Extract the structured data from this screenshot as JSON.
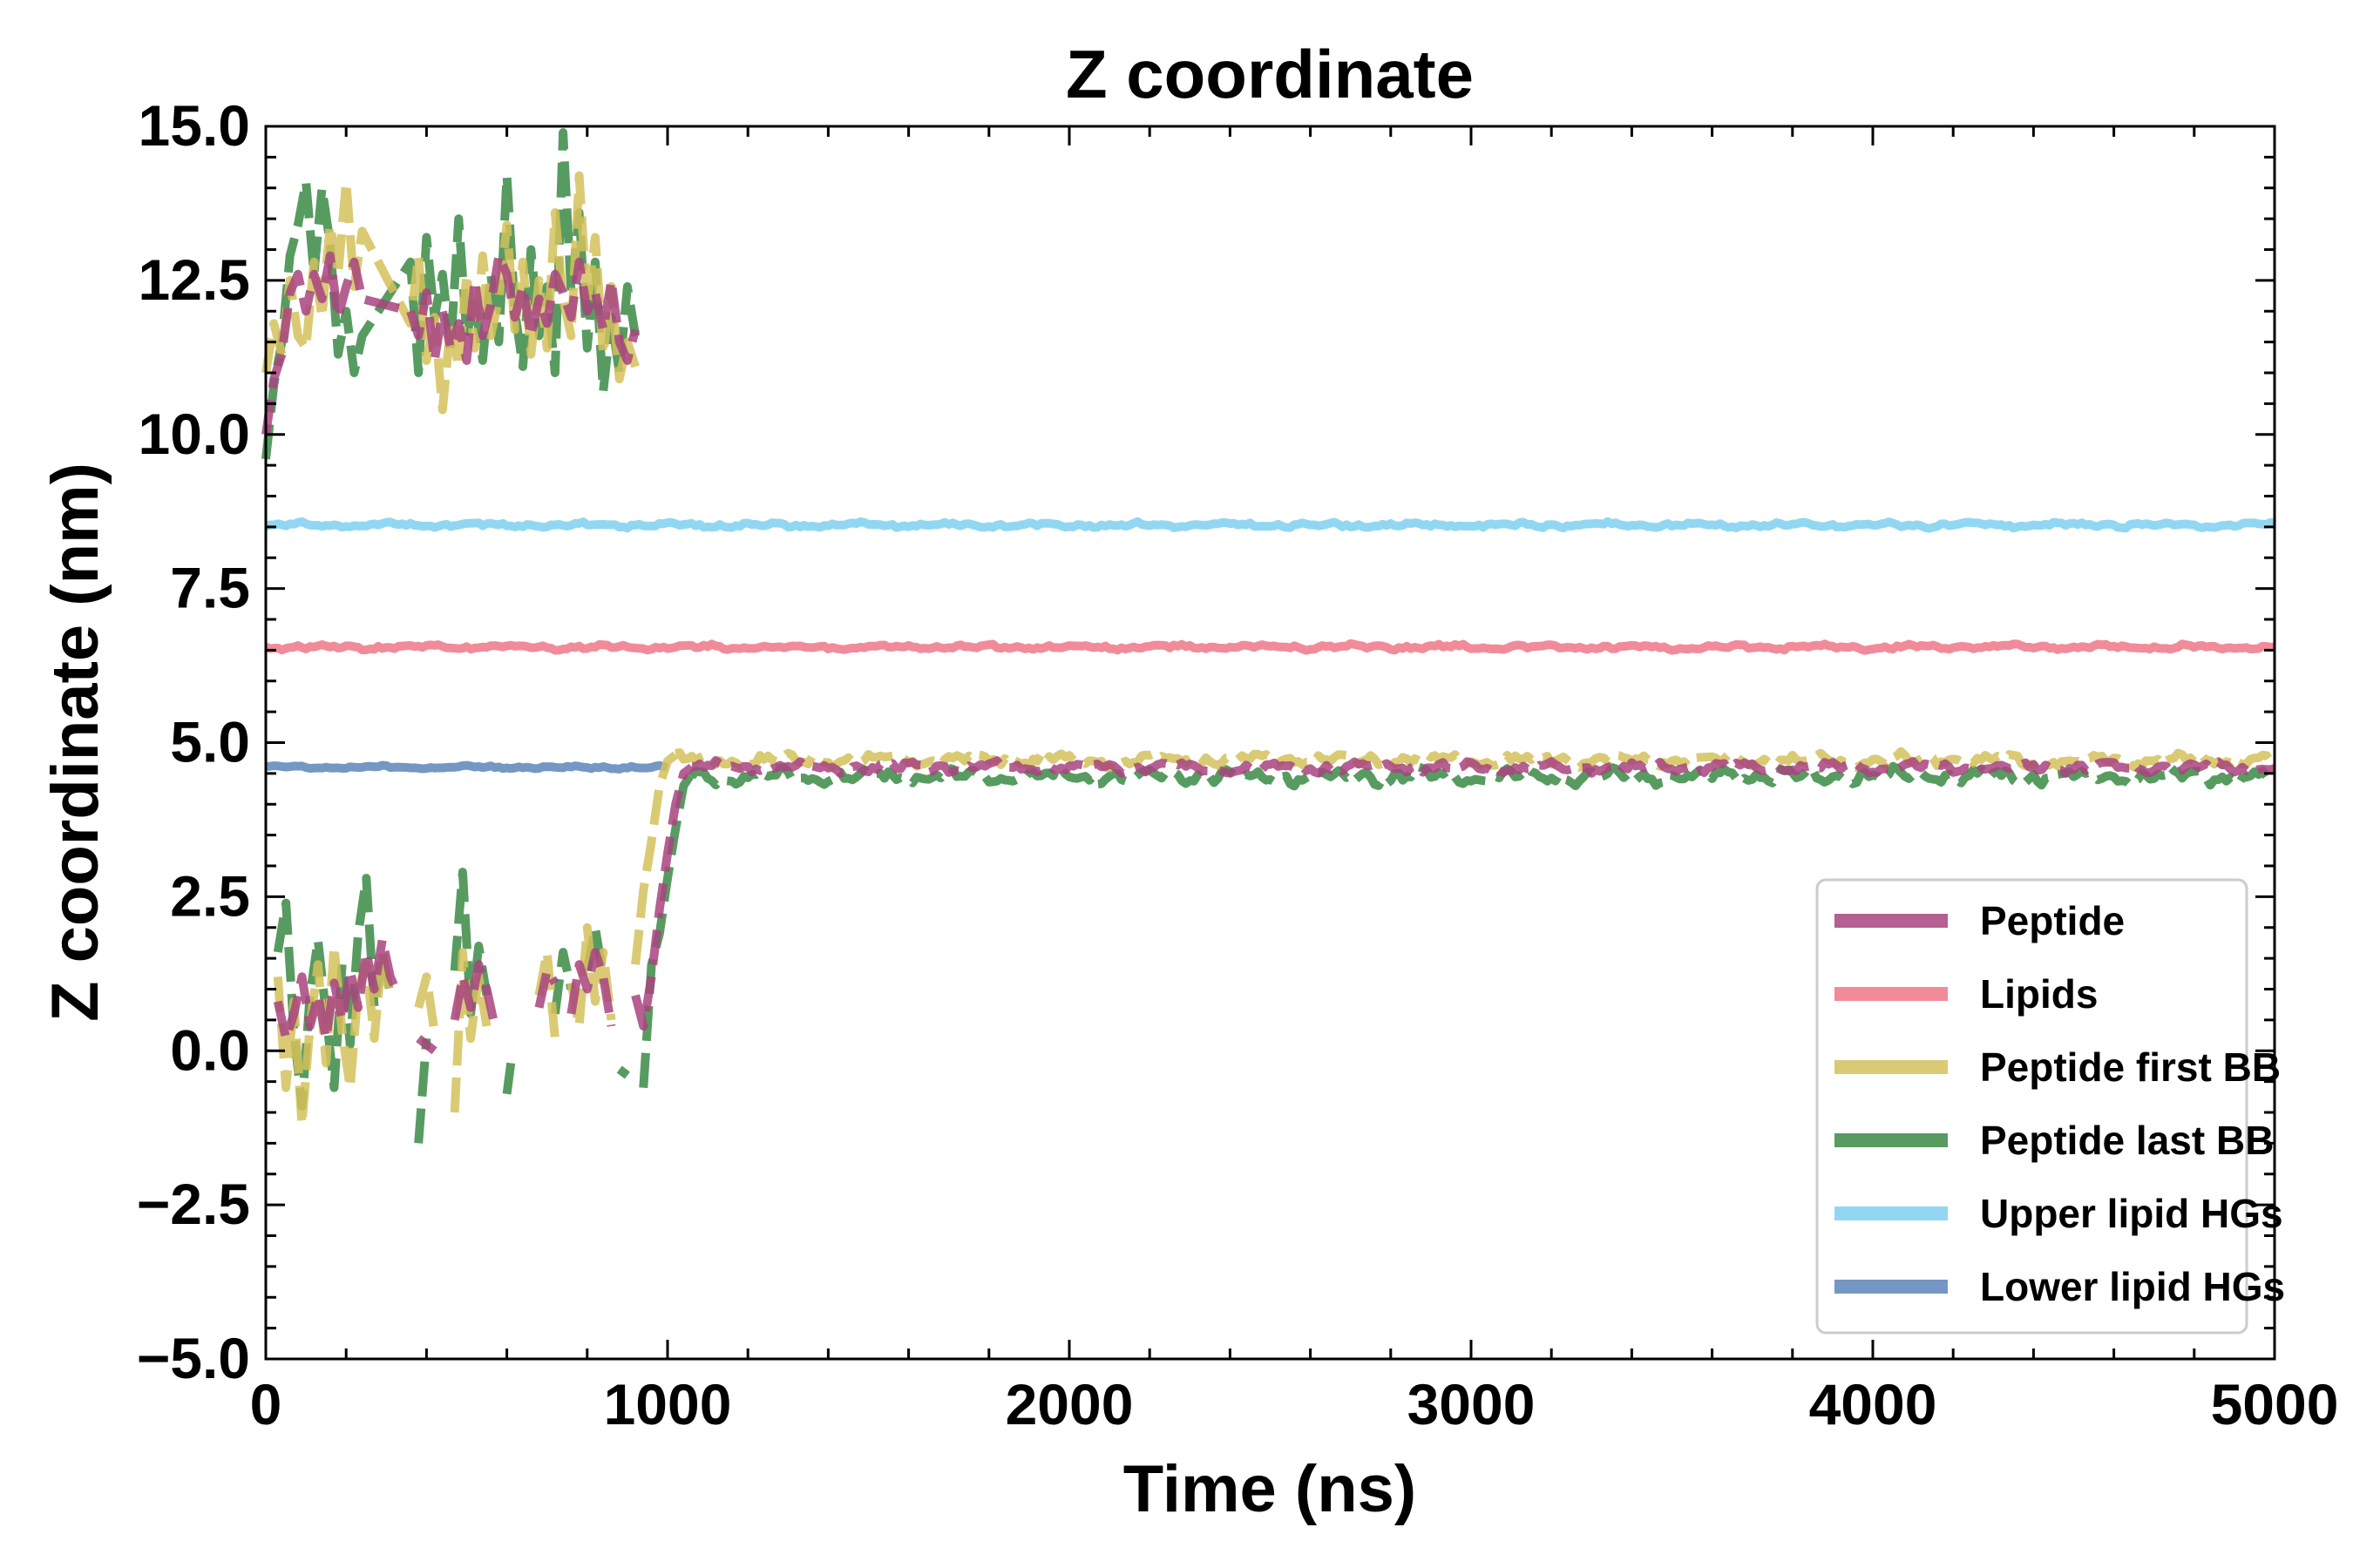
{
  "chart_data": {
    "type": "line",
    "title": "Z coordinate",
    "xlabel": "Time (ns)",
    "ylabel": "Z coordinate (nm)",
    "xlim": [
      0,
      5000
    ],
    "ylim": [
      -5.0,
      15.0
    ],
    "xticks": [
      0,
      1000,
      2000,
      3000,
      4000,
      5000
    ],
    "xtick_labels": [
      "0",
      "1000",
      "2000",
      "3000",
      "4000",
      "5000"
    ],
    "yticks": [
      -5.0,
      -2.5,
      0.0,
      2.5,
      5.0,
      7.5,
      10.0,
      12.5,
      15.0
    ],
    "ytick_labels": [
      "−5.0",
      "−2.5",
      "0.0",
      "2.5",
      "5.0",
      "7.5",
      "10.0",
      "12.5",
      "15.0"
    ],
    "grid": false,
    "legend_position": "lower-right",
    "series": [
      {
        "name": "Peptide",
        "color": "#a8437f",
        "style": "dashed",
        "points": [
          [
            0,
            10.0
          ],
          [
            20,
            10.9
          ],
          [
            40,
            11.3
          ],
          [
            60,
            12.3
          ],
          [
            80,
            12.6
          ],
          [
            100,
            12.0
          ],
          [
            120,
            12.6
          ],
          [
            140,
            12.2
          ],
          [
            160,
            12.9
          ],
          [
            180,
            11.9
          ],
          [
            200,
            12.4
          ],
          [
            220,
            12.8
          ],
          [
            240,
            12.2
          ],
          [
            360,
            12.0
          ],
          [
            380,
            11.6
          ],
          [
            400,
            12.3
          ],
          [
            420,
            11.2
          ],
          [
            440,
            12.0
          ],
          [
            460,
            11.4
          ],
          [
            480,
            11.8
          ],
          [
            500,
            11.2
          ],
          [
            520,
            12.5
          ],
          [
            540,
            11.6
          ],
          [
            560,
            12.1
          ],
          [
            580,
            12.9
          ],
          [
            600,
            12.6
          ],
          [
            620,
            11.9
          ],
          [
            640,
            12.4
          ],
          [
            660,
            11.6
          ],
          [
            680,
            12.2
          ],
          [
            700,
            11.8
          ],
          [
            720,
            12.6
          ],
          [
            740,
            12.3
          ],
          [
            760,
            11.9
          ],
          [
            780,
            12.8
          ],
          [
            800,
            12.0
          ],
          [
            820,
            12.3
          ],
          [
            840,
            11.7
          ],
          [
            860,
            12.5
          ],
          [
            880,
            11.5
          ],
          [
            900,
            11.2
          ],
          [
            920,
            11.7
          ],
          null,
          [
            30,
            0.8
          ],
          [
            50,
            0.2
          ],
          [
            70,
            0.6
          ],
          [
            90,
            1.2
          ],
          [
            110,
            0.4
          ],
          [
            130,
            0.9
          ],
          [
            150,
            0.2
          ],
          [
            170,
            1.1
          ],
          [
            190,
            0.5
          ],
          [
            210,
            1.3
          ],
          [
            230,
            0.7
          ],
          [
            250,
            1.6
          ],
          [
            270,
            1.0
          ],
          [
            290,
            1.8
          ],
          [
            310,
            1.2
          ],
          [
            330,
            0.9
          ],
          null,
          [
            380,
            0.2
          ],
          [
            420,
            0.0
          ],
          null,
          [
            470,
            0.5
          ],
          [
            490,
            1.2
          ],
          [
            510,
            0.7
          ],
          [
            530,
            1.4
          ],
          [
            550,
            1.0
          ],
          [
            570,
            0.4
          ],
          null,
          [
            680,
            0.7
          ],
          [
            700,
            1.3
          ],
          [
            720,
            1.1
          ],
          null,
          [
            760,
            0.6
          ],
          [
            780,
            1.4
          ],
          [
            800,
            1.0
          ],
          [
            820,
            1.6
          ],
          [
            840,
            1.2
          ],
          [
            860,
            0.4
          ],
          null,
          [
            920,
            0.9
          ],
          [
            940,
            0.4
          ],
          [
            960,
            1.2
          ],
          [
            980,
            2.3
          ],
          [
            1000,
            3.2
          ],
          [
            1020,
            4.0
          ],
          [
            1040,
            4.5
          ],
          [
            1060,
            4.6
          ]
        ],
        "tail": {
          "from": 1060,
          "to": 5000,
          "base": 4.6,
          "amp": 0.1
        }
      },
      {
        "name": "Lipids",
        "color": "#ee7788",
        "style": "solid",
        "tail": {
          "from": 0,
          "to": 5000,
          "base": 6.55,
          "amp": 0.05
        }
      },
      {
        "name": "Peptide first BB",
        "color": "#d4c15a",
        "style": "dashed",
        "points": [
          [
            0,
            11.0
          ],
          [
            20,
            11.8
          ],
          [
            40,
            11.3
          ],
          [
            60,
            12.5
          ],
          [
            80,
            11.6
          ],
          [
            100,
            11.4
          ],
          [
            120,
            12.8
          ],
          [
            140,
            11.9
          ],
          [
            160,
            13.4
          ],
          [
            180,
            12.6
          ],
          [
            200,
            14.1
          ],
          [
            220,
            12.4
          ],
          [
            240,
            13.3
          ],
          [
            360,
            11.8
          ],
          [
            380,
            12.9
          ],
          [
            400,
            11.2
          ],
          [
            420,
            11.9
          ],
          [
            440,
            10.4
          ],
          [
            460,
            11.8
          ],
          [
            480,
            11.1
          ],
          [
            500,
            12.6
          ],
          [
            520,
            11.4
          ],
          [
            540,
            12.9
          ],
          [
            560,
            11.6
          ],
          [
            580,
            12.2
          ],
          [
            600,
            13.4
          ],
          [
            620,
            11.7
          ],
          [
            640,
            12.8
          ],
          [
            660,
            11.3
          ],
          [
            680,
            12.5
          ],
          [
            700,
            11.4
          ],
          [
            720,
            13.6
          ],
          [
            740,
            12.2
          ],
          [
            760,
            11.6
          ],
          [
            780,
            14.2
          ],
          [
            800,
            12.1
          ],
          [
            820,
            13.2
          ],
          [
            840,
            11.3
          ],
          [
            860,
            12.4
          ],
          [
            880,
            10.9
          ],
          [
            900,
            11.5
          ],
          [
            920,
            11.1
          ],
          null,
          [
            30,
            1.2
          ],
          [
            50,
            -0.6
          ],
          [
            70,
            0.8
          ],
          [
            90,
            -1.2
          ],
          [
            110,
            0.4
          ],
          [
            130,
            1.4
          ],
          [
            150,
            -0.2
          ],
          [
            170,
            1.7
          ],
          [
            190,
            0.3
          ],
          [
            210,
            -0.6
          ],
          [
            230,
            1.0
          ],
          [
            250,
            1.4
          ],
          [
            270,
            0.2
          ],
          [
            290,
            1.6
          ],
          [
            310,
            0.9
          ],
          null,
          [
            380,
            0.7
          ],
          [
            400,
            1.2
          ],
          [
            420,
            0.3
          ],
          null,
          [
            470,
            -1.0
          ],
          [
            490,
            1.6
          ],
          [
            510,
            0.2
          ],
          [
            530,
            1.2
          ],
          [
            550,
            0.4
          ],
          null,
          [
            680,
            0.9
          ],
          [
            700,
            1.6
          ],
          [
            720,
            0.2
          ],
          null,
          [
            760,
            1.1
          ],
          [
            780,
            0.4
          ],
          [
            800,
            2.0
          ],
          [
            820,
            0.8
          ],
          [
            840,
            1.6
          ],
          [
            860,
            0.5
          ],
          null,
          [
            920,
            1.4
          ],
          [
            940,
            2.6
          ],
          [
            960,
            3.4
          ],
          [
            980,
            4.3
          ],
          [
            1000,
            4.7
          ],
          [
            1020,
            4.8
          ]
        ],
        "tail": {
          "from": 1020,
          "to": 5000,
          "base": 4.72,
          "amp": 0.12
        }
      },
      {
        "name": "Peptide last BB",
        "color": "#3a8a45",
        "style": "dashed",
        "points": [
          [
            0,
            9.6
          ],
          [
            20,
            10.8
          ],
          [
            40,
            11.5
          ],
          [
            60,
            12.9
          ],
          [
            80,
            13.4
          ],
          [
            100,
            14.1
          ],
          [
            120,
            12.6
          ],
          [
            140,
            14.0
          ],
          [
            160,
            13.1
          ],
          [
            180,
            11.3
          ],
          [
            200,
            12.0
          ],
          [
            220,
            11.0
          ],
          [
            240,
            11.6
          ],
          [
            360,
            12.8
          ],
          [
            380,
            11.0
          ],
          [
            400,
            13.2
          ],
          [
            420,
            11.9
          ],
          [
            440,
            12.6
          ],
          [
            460,
            11.4
          ],
          [
            480,
            13.5
          ],
          [
            500,
            11.6
          ],
          [
            520,
            12.2
          ],
          [
            540,
            11.2
          ],
          [
            560,
            12.6
          ],
          [
            580,
            11.5
          ],
          [
            600,
            14.2
          ],
          [
            620,
            12.0
          ],
          [
            640,
            11.1
          ],
          [
            660,
            13.0
          ],
          [
            680,
            11.6
          ],
          [
            700,
            12.4
          ],
          [
            720,
            11.0
          ],
          [
            740,
            14.9
          ],
          [
            760,
            12.3
          ],
          [
            780,
            13.6
          ],
          [
            800,
            11.4
          ],
          [
            820,
            12.8
          ],
          [
            840,
            10.7
          ],
          [
            860,
            11.9
          ],
          [
            880,
            11.0
          ],
          [
            900,
            12.4
          ],
          [
            920,
            11.6
          ],
          null,
          [
            30,
            1.6
          ],
          [
            50,
            2.4
          ],
          [
            70,
            0.3
          ],
          [
            90,
            -0.9
          ],
          [
            110,
            0.9
          ],
          [
            130,
            1.8
          ],
          [
            150,
            0.6
          ],
          [
            170,
            -0.6
          ],
          [
            190,
            1.4
          ],
          [
            210,
            0.1
          ],
          [
            230,
            1.9
          ],
          [
            250,
            2.8
          ],
          [
            270,
            0.7
          ],
          [
            290,
            1.6
          ],
          [
            310,
            0.9
          ],
          null,
          [
            380,
            -1.5
          ],
          [
            400,
            0.2
          ],
          null,
          [
            470,
            1.3
          ],
          [
            490,
            2.9
          ],
          [
            510,
            0.6
          ],
          [
            530,
            1.7
          ],
          [
            550,
            0.9
          ],
          null,
          [
            600,
            -0.7
          ],
          [
            610,
            -0.2
          ],
          null,
          [
            720,
            0.6
          ],
          [
            740,
            1.6
          ],
          [
            760,
            1.0
          ],
          null,
          [
            800,
            1.3
          ],
          [
            820,
            2.0
          ],
          [
            840,
            1.2
          ],
          null,
          [
            880,
            -0.3
          ],
          [
            900,
            -0.4
          ],
          null,
          [
            940,
            -0.6
          ],
          [
            960,
            1.4
          ],
          [
            980,
            1.9
          ],
          [
            1000,
            2.8
          ],
          [
            1020,
            3.6
          ],
          [
            1040,
            4.3
          ],
          [
            1060,
            4.5
          ]
        ],
        "tail": {
          "from": 1060,
          "to": 5000,
          "base": 4.45,
          "amp": 0.14
        }
      },
      {
        "name": "Upper lipid HGs",
        "color": "#7fd0ee",
        "style": "solid",
        "tail": {
          "from": 0,
          "to": 5000,
          "base": 8.53,
          "amp": 0.05
        }
      },
      {
        "name": "Lower lipid HGs",
        "color": "#5c85b8",
        "style": "solid",
        "tail": {
          "from": 0,
          "to": 1000,
          "base": 4.6,
          "amp": 0.03
        }
      }
    ]
  }
}
